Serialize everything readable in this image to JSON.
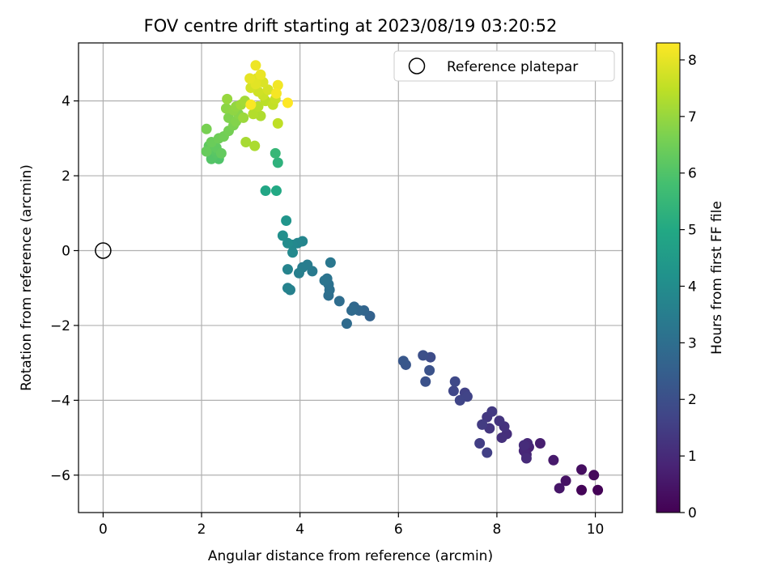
{
  "chart_data": {
    "type": "scatter",
    "title": "FOV centre drift starting at 2023/08/19 03:20:52",
    "xlabel": "Angular distance from reference (arcmin)",
    "ylabel": "Rotation from reference (arcmin)",
    "xlim": [
      -0.5,
      10.55
    ],
    "ylim": [
      -7.0,
      5.55
    ],
    "xticks": [
      0,
      2,
      4,
      6,
      8,
      10
    ],
    "yticks": [
      -6,
      -4,
      -2,
      0,
      2,
      4
    ],
    "xtick_labels": [
      "0",
      "2",
      "4",
      "6",
      "8",
      "10"
    ],
    "ytick_labels": [
      "−6",
      "−4",
      "−2",
      "0",
      "2",
      "4"
    ],
    "grid": true,
    "legend": {
      "position": "top-right",
      "entries": [
        "Reference platepar"
      ]
    },
    "reference_point": {
      "name": "Reference platepar",
      "x": 0,
      "y": 0
    },
    "colorbar": {
      "label": "Hours from first FF file",
      "min": 0,
      "max": 8.3,
      "colormap": "viridis",
      "ticks": [
        0,
        1,
        2,
        3,
        4,
        5,
        6,
        7,
        8
      ],
      "tick_labels": [
        "0",
        "1",
        "2",
        "3",
        "4",
        "5",
        "6",
        "7",
        "8"
      ]
    },
    "points": [
      [
        10.05,
        -6.4,
        0.05
      ],
      [
        9.72,
        -6.4,
        0.1
      ],
      [
        9.97,
        -6.0,
        0.2
      ],
      [
        9.72,
        -5.85,
        0.3
      ],
      [
        9.4,
        -6.15,
        0.4
      ],
      [
        9.27,
        -6.35,
        0.5
      ],
      [
        9.15,
        -5.6,
        0.6
      ],
      [
        8.88,
        -5.15,
        0.7
      ],
      [
        8.65,
        -5.25,
        0.8
      ],
      [
        8.6,
        -5.45,
        0.85
      ],
      [
        8.55,
        -5.35,
        0.9
      ],
      [
        8.62,
        -5.15,
        0.95
      ],
      [
        8.6,
        -5.55,
        1.0
      ],
      [
        8.55,
        -5.2,
        1.05
      ],
      [
        8.2,
        -4.9,
        1.1
      ],
      [
        8.1,
        -5.0,
        1.15
      ],
      [
        8.15,
        -4.7,
        1.2
      ],
      [
        8.05,
        -4.55,
        1.25
      ],
      [
        7.85,
        -4.75,
        1.3
      ],
      [
        7.8,
        -4.45,
        1.35
      ],
      [
        7.9,
        -4.3,
        1.4
      ],
      [
        7.7,
        -4.65,
        1.45
      ],
      [
        7.65,
        -5.15,
        1.5
      ],
      [
        7.8,
        -5.4,
        1.55
      ],
      [
        7.35,
        -3.8,
        1.6
      ],
      [
        7.4,
        -3.9,
        1.65
      ],
      [
        7.25,
        -4.0,
        1.7
      ],
      [
        7.12,
        -3.75,
        1.75
      ],
      [
        7.15,
        -3.5,
        1.8
      ],
      [
        6.65,
        -2.85,
        1.9
      ],
      [
        6.5,
        -2.8,
        2.0
      ],
      [
        6.55,
        -3.5,
        2.05
      ],
      [
        6.63,
        -3.2,
        2.1
      ],
      [
        6.15,
        -3.05,
        2.2
      ],
      [
        6.1,
        -2.95,
        2.25
      ],
      [
        5.42,
        -1.75,
        2.6
      ],
      [
        5.3,
        -1.6,
        2.7
      ],
      [
        5.2,
        -1.6,
        2.75
      ],
      [
        5.1,
        -1.5,
        2.8
      ],
      [
        5.05,
        -1.6,
        2.85
      ],
      [
        4.95,
        -1.95,
        2.9
      ],
      [
        4.8,
        -1.35,
        2.95
      ],
      [
        4.58,
        -1.2,
        3.0
      ],
      [
        4.6,
        -1.05,
        3.05
      ],
      [
        4.58,
        -0.9,
        3.1
      ],
      [
        4.55,
        -0.75,
        3.15
      ],
      [
        4.5,
        -0.8,
        3.2
      ],
      [
        4.62,
        -0.32,
        3.3
      ],
      [
        4.25,
        -0.55,
        3.4
      ],
      [
        4.15,
        -0.38,
        3.45
      ],
      [
        4.05,
        -0.45,
        3.5
      ],
      [
        3.98,
        -0.6,
        3.55
      ],
      [
        3.8,
        -1.05,
        3.6
      ],
      [
        3.75,
        -1.0,
        3.65
      ],
      [
        3.75,
        -0.5,
        3.7
      ],
      [
        4.05,
        0.25,
        3.75
      ],
      [
        3.95,
        0.2,
        3.8
      ],
      [
        3.85,
        0.15,
        3.85
      ],
      [
        3.85,
        -0.05,
        3.9
      ],
      [
        3.75,
        0.2,
        4.0
      ],
      [
        3.65,
        0.4,
        4.1
      ],
      [
        3.72,
        0.8,
        4.3
      ],
      [
        3.3,
        1.6,
        4.9
      ],
      [
        3.52,
        1.6,
        5.0
      ],
      [
        3.55,
        2.35,
        5.3
      ],
      [
        3.5,
        2.6,
        5.5
      ],
      [
        2.35,
        2.45,
        6.0
      ],
      [
        2.2,
        2.45,
        6.05
      ],
      [
        2.3,
        2.6,
        6.1
      ],
      [
        2.25,
        2.7,
        6.15
      ],
      [
        2.15,
        2.8,
        6.2
      ],
      [
        2.3,
        2.75,
        6.25
      ],
      [
        2.4,
        2.6,
        6.3
      ],
      [
        2.1,
        2.65,
        6.35
      ],
      [
        2.2,
        2.9,
        6.4
      ],
      [
        2.35,
        3.0,
        6.45
      ],
      [
        2.45,
        3.05,
        6.5
      ],
      [
        2.55,
        3.2,
        6.55
      ],
      [
        2.1,
        3.25,
        6.6
      ],
      [
        2.65,
        3.35,
        6.65
      ],
      [
        2.55,
        3.55,
        6.7
      ],
      [
        2.7,
        3.45,
        6.75
      ],
      [
        2.75,
        3.65,
        6.8
      ],
      [
        2.5,
        3.8,
        6.85
      ],
      [
        2.65,
        3.75,
        6.9
      ],
      [
        2.7,
        3.85,
        6.95
      ],
      [
        2.52,
        4.05,
        7.0
      ],
      [
        2.85,
        3.55,
        7.05
      ],
      [
        2.8,
        3.9,
        7.1
      ],
      [
        2.88,
        4.0,
        7.15
      ],
      [
        2.9,
        2.9,
        7.2
      ],
      [
        3.08,
        2.8,
        7.25
      ],
      [
        3.2,
        3.6,
        7.3
      ],
      [
        3.05,
        3.65,
        7.35
      ],
      [
        3.15,
        3.85,
        7.4
      ],
      [
        3.3,
        4.0,
        7.45
      ],
      [
        3.55,
        3.4,
        7.5
      ],
      [
        3.45,
        3.9,
        7.55
      ],
      [
        3.5,
        4.05,
        7.6
      ],
      [
        3.25,
        4.15,
        7.65
      ],
      [
        3.15,
        4.25,
        7.7
      ],
      [
        3.0,
        4.35,
        7.75
      ],
      [
        3.35,
        4.3,
        7.8
      ],
      [
        3.25,
        4.5,
        7.85
      ],
      [
        3.12,
        4.6,
        7.9
      ],
      [
        3.1,
        4.45,
        7.95
      ],
      [
        2.98,
        4.6,
        8.0
      ],
      [
        3.2,
        4.7,
        8.05
      ],
      [
        3.1,
        4.95,
        8.1
      ],
      [
        3.55,
        4.42,
        8.15
      ],
      [
        3.52,
        4.2,
        8.2
      ],
      [
        3.0,
        3.9,
        8.25
      ],
      [
        3.75,
        3.95,
        8.3
      ]
    ]
  }
}
